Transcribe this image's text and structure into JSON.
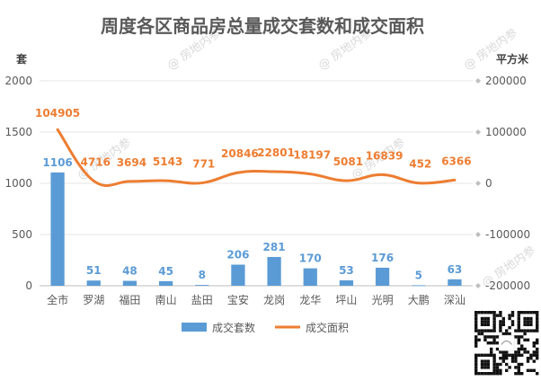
{
  "chart_data": {
    "type": "bar",
    "title": "周度各区商品房总量成交套数和成交面积",
    "categories": [
      "全市",
      "罗湖",
      "福田",
      "南山",
      "盐田",
      "宝安",
      "龙岗",
      "龙华",
      "坪山",
      "光明",
      "大鹏",
      "深汕"
    ],
    "series": [
      {
        "name": "成交套数",
        "type": "bar",
        "axis": "left",
        "color": "#5b9bd5",
        "values": [
          1106,
          51,
          48,
          45,
          8,
          206,
          281,
          170,
          53,
          176,
          5,
          63
        ]
      },
      {
        "name": "成交面积",
        "type": "line",
        "axis": "right",
        "color": "#ed7d31",
        "values": [
          104905,
          4716,
          3694,
          5143,
          771,
          20846,
          22801,
          18197,
          5081,
          16839,
          452,
          6366
        ]
      }
    ],
    "left_axis": {
      "unit": "套",
      "ylim": [
        0,
        2000
      ],
      "ticks": [
        "0",
        "500",
        "1000",
        "1500",
        "2000"
      ]
    },
    "right_axis": {
      "unit": "平方米",
      "ylim": [
        -200000,
        200000
      ],
      "ticks": [
        "-200000",
        "-100000",
        "0",
        "100000",
        "200000"
      ]
    },
    "legend_position": "bottom",
    "grid": true
  },
  "watermark": "房地内参"
}
